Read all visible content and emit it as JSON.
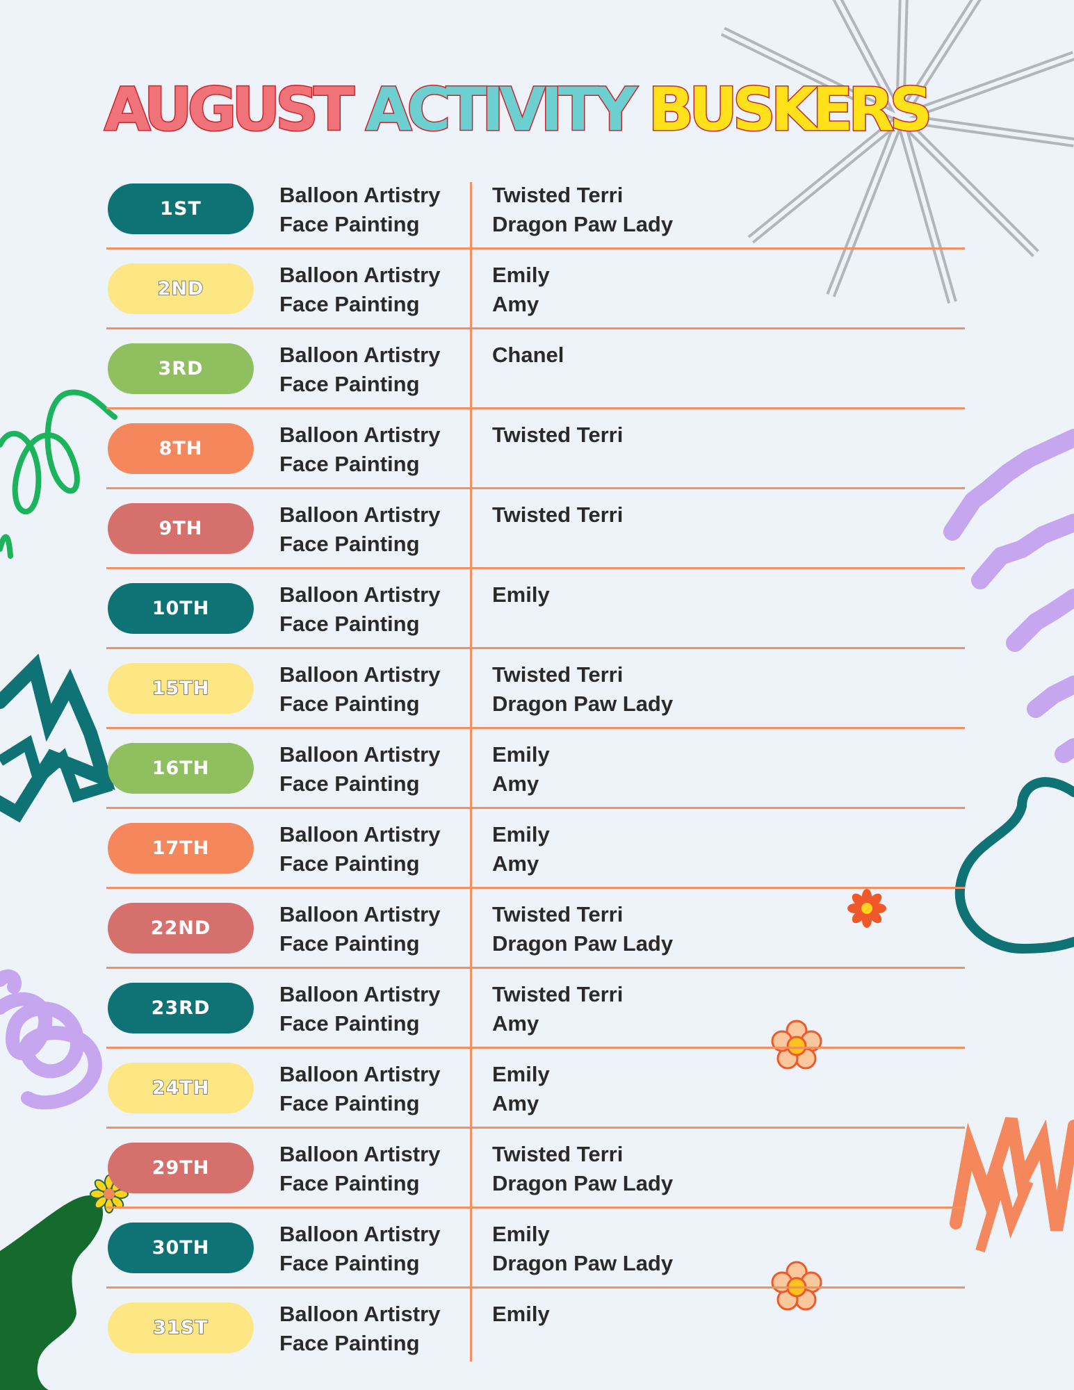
{
  "title": {
    "part1": "AUGUST",
    "part2": "ACTIVITY",
    "part3": "BUSKERS"
  },
  "colors": {
    "teal": "#0f7275",
    "yellow": "#fde785",
    "green": "#8fbf5f",
    "orange": "#f4875c",
    "rose": "#d5706d",
    "divider": "#f2915f",
    "background": "#edf3f8"
  },
  "schedule": [
    {
      "day": "1ST",
      "pill": "teal",
      "activities": [
        "Balloon Artistry",
        "Face Painting"
      ],
      "buskers": [
        "Twisted Terri",
        "Dragon Paw Lady"
      ]
    },
    {
      "day": "2ND",
      "pill": "yellow",
      "activities": [
        "Balloon Artistry",
        "Face Painting"
      ],
      "buskers": [
        "Emily",
        "Amy"
      ]
    },
    {
      "day": "3RD",
      "pill": "green",
      "activities": [
        "Balloon Artistry",
        "Face Painting"
      ],
      "buskers": [
        "Chanel",
        ""
      ]
    },
    {
      "day": "8TH",
      "pill": "orange",
      "activities": [
        "Balloon Artistry",
        "Face Painting"
      ],
      "buskers": [
        "Twisted Terri",
        ""
      ]
    },
    {
      "day": "9TH",
      "pill": "rose",
      "activities": [
        "Balloon Artistry",
        "Face Painting"
      ],
      "buskers": [
        "Twisted Terri",
        ""
      ]
    },
    {
      "day": "10TH",
      "pill": "teal",
      "activities": [
        "Balloon Artistry",
        "Face Painting"
      ],
      "buskers": [
        "Emily",
        ""
      ]
    },
    {
      "day": "15TH",
      "pill": "yellow",
      "activities": [
        "Balloon Artistry",
        "Face Painting"
      ],
      "buskers": [
        "Twisted Terri",
        "Dragon Paw Lady"
      ]
    },
    {
      "day": "16TH",
      "pill": "green",
      "activities": [
        "Balloon Artistry",
        "Face Painting"
      ],
      "buskers": [
        "Emily",
        "Amy"
      ]
    },
    {
      "day": "17TH",
      "pill": "orange",
      "activities": [
        "Balloon Artistry",
        "Face Painting"
      ],
      "buskers": [
        "Emily",
        "Amy"
      ]
    },
    {
      "day": "22ND",
      "pill": "rose",
      "activities": [
        "Balloon Artistry",
        "Face Painting"
      ],
      "buskers": [
        "Twisted Terri",
        "Dragon Paw Lady"
      ]
    },
    {
      "day": "23RD",
      "pill": "teal",
      "activities": [
        "Balloon Artistry",
        "Face Painting"
      ],
      "buskers": [
        "Twisted Terri",
        "Amy"
      ]
    },
    {
      "day": "24TH",
      "pill": "yellow",
      "activities": [
        "Balloon Artistry",
        "Face Painting"
      ],
      "buskers": [
        "Emily",
        "Amy"
      ]
    },
    {
      "day": "29TH",
      "pill": "rose",
      "activities": [
        "Balloon Artistry",
        "Face Painting"
      ],
      "buskers": [
        "Twisted Terri",
        "Dragon Paw Lady"
      ]
    },
    {
      "day": "30TH",
      "pill": "teal",
      "activities": [
        "Balloon Artistry",
        "Face Painting"
      ],
      "buskers": [
        "Emily",
        "Dragon Paw Lady"
      ]
    },
    {
      "day": "31ST",
      "pill": "yellow",
      "activities": [
        "Balloon Artistry",
        "Face Painting"
      ],
      "buskers": [
        "Emily",
        ""
      ]
    }
  ],
  "decorations": [
    "starburst-lines",
    "green-loop-squiggle",
    "purple-zigzag-strokes",
    "teal-zigzag",
    "teal-blob-outline",
    "orange-flower",
    "purple-scribble",
    "orange-zigzag",
    "green-blob",
    "yellow-daisy"
  ]
}
